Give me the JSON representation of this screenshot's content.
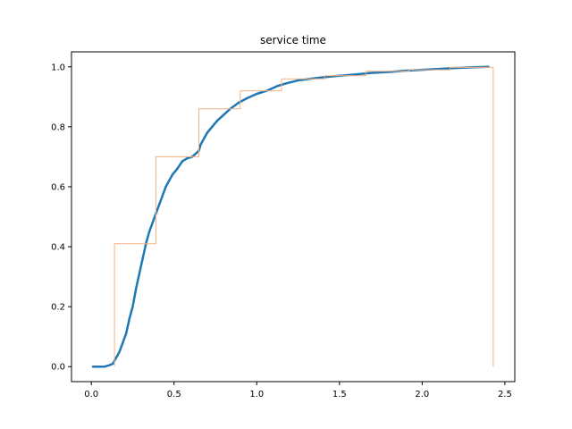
{
  "chart_data": {
    "type": "line",
    "title": "service time",
    "xlabel": "",
    "ylabel": "",
    "xlim": [
      -0.12,
      2.56
    ],
    "ylim": [
      -0.05,
      1.05
    ],
    "xticks": [
      0.0,
      0.5,
      1.0,
      1.5,
      2.0,
      2.5
    ],
    "xtick_labels": [
      "0.0",
      "0.5",
      "1.0",
      "1.5",
      "2.0",
      "2.5"
    ],
    "yticks": [
      0.0,
      0.2,
      0.4,
      0.6,
      0.8,
      1.0
    ],
    "ytick_labels": [
      "0.0",
      "0.2",
      "0.4",
      "0.6",
      "0.8",
      "1.0"
    ],
    "grid": false,
    "legend": "none",
    "series": [
      {
        "style": "dots",
        "color": "#1f77b4",
        "x": [
          0.01,
          0.05,
          0.08,
          0.11,
          0.13,
          0.14,
          0.15,
          0.17,
          0.19,
          0.21,
          0.23,
          0.25,
          0.27,
          0.29,
          0.31,
          0.33,
          0.35,
          0.37,
          0.39,
          0.41,
          0.43,
          0.45,
          0.47,
          0.49,
          0.52,
          0.55,
          0.58,
          0.61,
          0.63,
          0.65,
          0.66,
          0.68,
          0.7,
          0.73,
          0.76,
          0.8,
          0.84,
          0.89,
          0.94,
          1.0,
          1.06,
          1.12,
          1.18,
          1.25,
          1.32,
          1.4,
          1.5,
          1.6,
          1.7,
          1.8,
          1.9,
          2.0,
          2.1,
          2.2,
          2.3,
          2.4
        ],
        "y": [
          0.0,
          0.0,
          0.0,
          0.005,
          0.01,
          0.02,
          0.03,
          0.05,
          0.08,
          0.11,
          0.16,
          0.2,
          0.26,
          0.31,
          0.36,
          0.41,
          0.45,
          0.48,
          0.51,
          0.54,
          0.57,
          0.6,
          0.62,
          0.64,
          0.66,
          0.685,
          0.695,
          0.7,
          0.71,
          0.72,
          0.74,
          0.76,
          0.78,
          0.8,
          0.82,
          0.84,
          0.86,
          0.88,
          0.895,
          0.91,
          0.92,
          0.935,
          0.945,
          0.955,
          0.96,
          0.965,
          0.97,
          0.975,
          0.98,
          0.983,
          0.987,
          0.99,
          0.993,
          0.996,
          0.998,
          1.0
        ]
      },
      {
        "style": "step",
        "color": "#f4b183",
        "x": [
          0.14,
          0.14,
          0.39,
          0.39,
          0.65,
          0.65,
          0.9,
          0.9,
          1.15,
          1.15,
          1.41,
          1.41,
          1.66,
          1.66,
          1.92,
          1.92,
          2.17,
          2.17,
          2.43,
          2.43
        ],
        "y": [
          0.0,
          0.41,
          0.41,
          0.7,
          0.7,
          0.86,
          0.86,
          0.92,
          0.92,
          0.96,
          0.96,
          0.97,
          0.97,
          0.985,
          0.985,
          0.99,
          0.99,
          0.998,
          0.998,
          0.0
        ]
      }
    ]
  }
}
